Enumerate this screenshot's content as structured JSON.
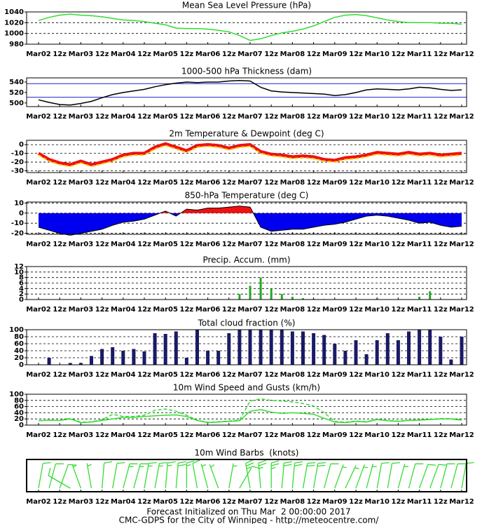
{
  "chart_data": [
    {
      "type": "line",
      "title": "Mean Sea Level Pressure (hPa)",
      "categories": [
        "Mar02",
        null,
        "12z",
        null,
        "Mar03",
        null,
        "12z",
        null,
        "Mar04",
        null,
        "12z",
        null,
        "Mar05",
        null,
        "12z",
        null,
        "Mar06",
        null,
        "12z",
        null,
        "Mar07",
        null,
        "12z",
        null,
        "Mar08",
        null,
        "12z",
        null,
        "Mar09",
        null,
        "12z",
        null,
        "Mar10",
        null,
        "12z",
        null,
        "Mar11",
        null,
        "12z",
        null,
        "Mar12"
      ],
      "series": [
        {
          "color": "#33dd33",
          "values": [
            1024,
            1030,
            1034,
            1036,
            1034,
            1033,
            1031,
            1028,
            1025,
            1024,
            1022,
            1019,
            1016,
            1010,
            1009,
            1009,
            1008,
            1006,
            1003,
            996,
            987,
            990,
            996,
            1001,
            1004,
            1008,
            1014,
            1022,
            1030,
            1034,
            1035,
            1033,
            1029,
            1025,
            1022,
            1020,
            1020,
            1020,
            1019,
            1019,
            1017
          ]
        }
      ],
      "ylim": [
        980,
        1040
      ],
      "yticks": [
        980,
        1000,
        1020,
        1040
      ],
      "grid": true
    },
    {
      "type": "line",
      "title": "1000-500 hPa Thickness (dam)",
      "categories": [
        "Mar02",
        null,
        "12z",
        null,
        "Mar03",
        null,
        "12z",
        null,
        "Mar04",
        null,
        "12z",
        null,
        "Mar05",
        null,
        "12z",
        null,
        "Mar06",
        null,
        "12z",
        null,
        "Mar07",
        null,
        "12z",
        null,
        "Mar08",
        null,
        "12z",
        null,
        "Mar09",
        null,
        "12z",
        null,
        "Mar10",
        null,
        "12z",
        null,
        "Mar11",
        null,
        "12z",
        null,
        "Mar12"
      ],
      "series": [
        {
          "color": "#000000",
          "values": [
            506,
            501,
            497,
            496,
            499,
            503,
            510,
            516,
            520,
            523,
            526,
            531,
            535,
            538,
            540,
            539,
            540,
            540,
            542,
            543,
            542,
            530,
            523,
            521,
            520,
            519,
            518,
            517,
            514,
            516,
            520,
            525,
            527,
            526,
            525,
            527,
            530,
            529,
            526,
            524,
            525
          ]
        }
      ],
      "ylim": [
        493,
        548
      ],
      "yticks": [
        500,
        520,
        540
      ],
      "grid": false,
      "reference_lines": {
        "values": [
          537,
          511
        ],
        "color": "#2222cc"
      }
    },
    {
      "type": "line",
      "title": "2m Temperature & Dewpoint (deg C)",
      "categories": [
        "Mar02",
        null,
        "12z",
        null,
        "Mar03",
        null,
        "12z",
        null,
        "Mar04",
        null,
        "12z",
        null,
        "Mar05",
        null,
        "12z",
        null,
        "Mar06",
        null,
        "12z",
        null,
        "Mar07",
        null,
        "12z",
        null,
        "Mar08",
        null,
        "12z",
        null,
        "Mar09",
        null,
        "12z",
        null,
        "Mar10",
        null,
        "12z",
        null,
        "Mar11",
        null,
        "12z",
        null,
        "Mar12"
      ],
      "series": [
        {
          "color": "#ee1111",
          "values": [
            -10,
            -17,
            -21,
            -23,
            -19,
            -23,
            -20,
            -17,
            -12,
            -10,
            -10,
            -3,
            1,
            -3,
            -7,
            -1,
            0,
            -1,
            -4,
            -1,
            0,
            -8,
            -11,
            -12,
            -14,
            -13,
            -14,
            -17,
            -18,
            -15,
            -14,
            -12,
            -9,
            -10,
            -11,
            -9,
            -11,
            -10,
            -12,
            -11,
            -10
          ]
        },
        {
          "color": "#ffcc00",
          "dashed": true,
          "values": [
            -12,
            -19,
            -23,
            -25,
            -21,
            -25,
            -22,
            -19,
            -14,
            -12,
            -12,
            -5,
            -1,
            -5,
            -9,
            -3,
            -2,
            -3,
            -6,
            -3,
            -2,
            -10,
            -13,
            -14,
            -16,
            -15,
            -16,
            -19,
            -20,
            -17,
            -16,
            -14,
            -11,
            -12,
            -13,
            -11,
            -13,
            -12,
            -14,
            -13,
            -12
          ]
        }
      ],
      "ylim": [
        -32,
        5
      ],
      "yticks": [
        -30,
        -20,
        -10,
        0
      ],
      "grid": true
    },
    {
      "type": "area",
      "title": "850-hPa Temperature (deg C)",
      "categories": [
        "Mar02",
        null,
        "12z",
        null,
        "Mar03",
        null,
        "12z",
        null,
        "Mar04",
        null,
        "12z",
        null,
        "Mar05",
        null,
        "12z",
        null,
        "Mar06",
        null,
        "12z",
        null,
        "Mar07",
        null,
        "12z",
        null,
        "Mar08",
        null,
        "12z",
        null,
        "Mar09",
        null,
        "12z",
        null,
        "Mar10",
        null,
        "12z",
        null,
        "Mar11",
        null,
        "12z",
        null,
        "Mar12"
      ],
      "values": [
        -14,
        -17,
        -20,
        -22,
        -20,
        -18,
        -16,
        -12,
        -9,
        -8,
        -6,
        -2,
        2,
        -3,
        4,
        3,
        5,
        5,
        6,
        7,
        6,
        -14,
        -18,
        -17,
        -16,
        -16,
        -14,
        -12,
        -11,
        -9,
        -6,
        -3,
        -2,
        -3,
        -5,
        -7,
        -10,
        -9,
        -12,
        -14,
        -13
      ],
      "colors": {
        "above": "#ee1111",
        "below": "#0000ee"
      },
      "ylim": [
        -21,
        11
      ],
      "yticks": [
        -20,
        -10,
        0,
        10
      ],
      "grid": true
    },
    {
      "type": "bar",
      "title": "Precip. Accum. (mm)",
      "categories": [
        "Mar02",
        null,
        "12z",
        null,
        "Mar03",
        null,
        "12z",
        null,
        "Mar04",
        null,
        "12z",
        null,
        "Mar05",
        null,
        "12z",
        null,
        "Mar06",
        null,
        "12z",
        null,
        "Mar07",
        null,
        "12z",
        null,
        "Mar08",
        null,
        "12z",
        null,
        "Mar09",
        null,
        "12z",
        null,
        "Mar10",
        null,
        "12z",
        null,
        "Mar11",
        null,
        "12z",
        null,
        "Mar12"
      ],
      "values": [
        0,
        0,
        0,
        0,
        0,
        0,
        0,
        0,
        0,
        0,
        0,
        0,
        0,
        0,
        0,
        0,
        0,
        0,
        0,
        2,
        5,
        8,
        4,
        2,
        1,
        0.5,
        0.3,
        0.2,
        0,
        0,
        0,
        0,
        0.5,
        0,
        0,
        0,
        1,
        3,
        0,
        0,
        0
      ],
      "color": "#22aa22",
      "ylim": [
        0,
        12
      ],
      "yticks": [
        0,
        2,
        4,
        6,
        8,
        10,
        12
      ],
      "grid": true
    },
    {
      "type": "bar",
      "title": "Total cloud fraction (%)",
      "categories": [
        "Mar02",
        null,
        "12z",
        null,
        "Mar03",
        null,
        "12z",
        null,
        "Mar04",
        null,
        "12z",
        null,
        "Mar05",
        null,
        "12z",
        null,
        "Mar06",
        null,
        "12z",
        null,
        "Mar07",
        null,
        "12z",
        null,
        "Mar08",
        null,
        "12z",
        null,
        "Mar09",
        null,
        "12z",
        null,
        "Mar10",
        null,
        "12z",
        null,
        "Mar11",
        null,
        "12z",
        null,
        "Mar12"
      ],
      "values": [
        0,
        20,
        0,
        5,
        5,
        25,
        45,
        50,
        40,
        45,
        38,
        90,
        88,
        95,
        20,
        100,
        40,
        40,
        90,
        100,
        100,
        100,
        100,
        100,
        95,
        95,
        90,
        85,
        60,
        40,
        70,
        30,
        70,
        90,
        70,
        95,
        100,
        100,
        80,
        15,
        80
      ],
      "color": "#1a1a66",
      "ylim": [
        0,
        100
      ],
      "yticks": [
        0,
        20,
        40,
        60,
        80,
        100
      ],
      "grid": true
    },
    {
      "type": "line",
      "title": "10m Wind Speed and Gusts (km/h)",
      "categories": [
        "Mar02",
        null,
        "12z",
        null,
        "Mar03",
        null,
        "12z",
        null,
        "Mar04",
        null,
        "12z",
        null,
        "Mar05",
        null,
        "12z",
        null,
        "Mar06",
        null,
        "12z",
        null,
        "Mar07",
        null,
        "12z",
        null,
        "Mar08",
        null,
        "12z",
        null,
        "Mar09",
        null,
        "12z",
        null,
        "Mar10",
        null,
        "12z",
        null,
        "Mar11",
        null,
        "12z",
        null,
        "Mar12"
      ],
      "series": [
        {
          "color": "#33dd33",
          "values": [
            14,
            16,
            15,
            20,
            8,
            10,
            15,
            20,
            25,
            25,
            28,
            30,
            32,
            33,
            28,
            15,
            8,
            10,
            12,
            14,
            45,
            50,
            42,
            38,
            40,
            38,
            35,
            22,
            10,
            8,
            12,
            10,
            18,
            14,
            12,
            15,
            16,
            18,
            20,
            20,
            16
          ]
        },
        {
          "color": "#33dd33",
          "dashed": true,
          "values": [
            14,
            16,
            15,
            22,
            9,
            11,
            17,
            35,
            28,
            28,
            32,
            48,
            52,
            45,
            32,
            16,
            9,
            11,
            13,
            16,
            78,
            85,
            80,
            78,
            75,
            70,
            62,
            40,
            12,
            9,
            13,
            11,
            19,
            15,
            13,
            16,
            17,
            19,
            21,
            21,
            17
          ]
        }
      ],
      "ylim": [
        0,
        100
      ],
      "yticks": [
        0,
        20,
        40,
        60,
        80,
        100
      ],
      "grid": true
    },
    {
      "type": "barbs",
      "title": "10m Wind Barbs  (knots)",
      "categories": [
        "Mar02",
        null,
        "12z",
        null,
        "Mar03",
        null,
        "12z",
        null,
        "Mar04",
        null,
        "12z",
        null,
        "Mar05",
        null,
        "12z",
        null,
        "Mar06",
        null,
        "12z",
        null,
        "Mar07",
        null,
        "12z",
        null,
        "Mar08",
        null,
        "12z",
        null,
        "Mar09",
        null,
        "12z",
        null,
        "Mar10",
        null,
        "12z",
        null,
        "Mar11",
        null,
        "12z",
        null,
        "Mar12"
      ],
      "direction": [
        10,
        15,
        20,
        300,
        340,
        350,
        5,
        10,
        15,
        15,
        10,
        10,
        5,
        5,
        0,
        350,
        345,
        340,
        10,
        30,
        350,
        355,
        0,
        5,
        5,
        10,
        10,
        15,
        20,
        25,
        20,
        15,
        10,
        10,
        15,
        15,
        20,
        20,
        15,
        15,
        10
      ],
      "speed": [
        8,
        9,
        8,
        11,
        5,
        6,
        8,
        11,
        14,
        14,
        15,
        16,
        17,
        18,
        15,
        8,
        5,
        6,
        7,
        8,
        25,
        27,
        23,
        21,
        22,
        21,
        19,
        12,
        6,
        5,
        7,
        6,
        10,
        8,
        7,
        8,
        9,
        10,
        11,
        11,
        9
      ],
      "color": "#33dd33"
    }
  ],
  "footer": [
    "Forecast Initialized on Thu Mar  2 00:00:00 2017",
    "CMC-GDPS for the City of Winnipeg - http://meteocentre.com/"
  ]
}
